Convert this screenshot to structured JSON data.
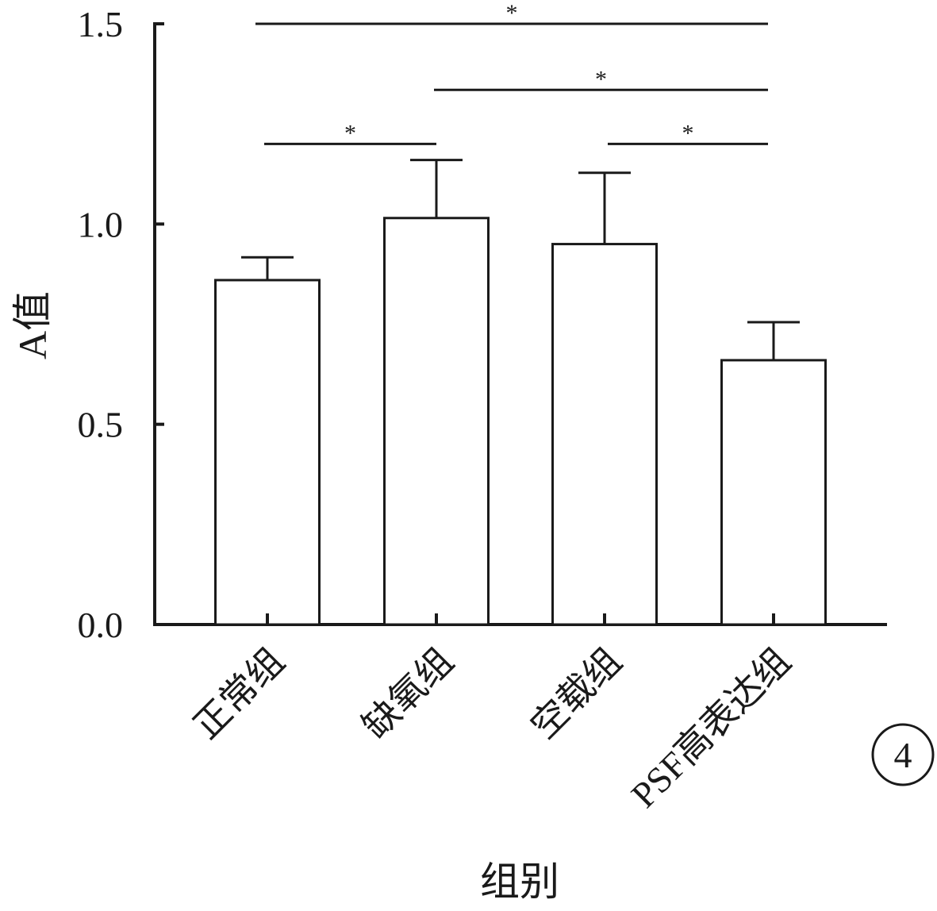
{
  "chart_data": {
    "type": "bar",
    "categories": [
      "正常组",
      "缺氧组",
      "空载组",
      "PSF高表达组"
    ],
    "values": [
      0.86,
      1.015,
      0.95,
      0.66
    ],
    "errors": [
      0.057,
      0.145,
      0.178,
      0.095
    ],
    "xlabel": "组别",
    "ylabel": "A值",
    "ylim": [
      0,
      1.5
    ],
    "yticks": [
      "0.0",
      "0.5",
      "1.0",
      "1.5"
    ],
    "ytick_values": [
      0,
      0.5,
      1.0,
      1.5
    ],
    "bar_fill": "#ffffff",
    "bar_stroke": "#1a1a1a",
    "grid": false,
    "legend": "none",
    "significance": [
      {
        "from": 0,
        "to": 1,
        "y": 1.2,
        "label": "*"
      },
      {
        "from": 2,
        "to": 3,
        "y": 1.2,
        "label": "*"
      },
      {
        "from": 1,
        "to": 3,
        "y": 1.335,
        "label": "*"
      },
      {
        "from": 0,
        "to": 3,
        "y": 1.5,
        "label": "*"
      }
    ]
  },
  "panel_label": "4"
}
